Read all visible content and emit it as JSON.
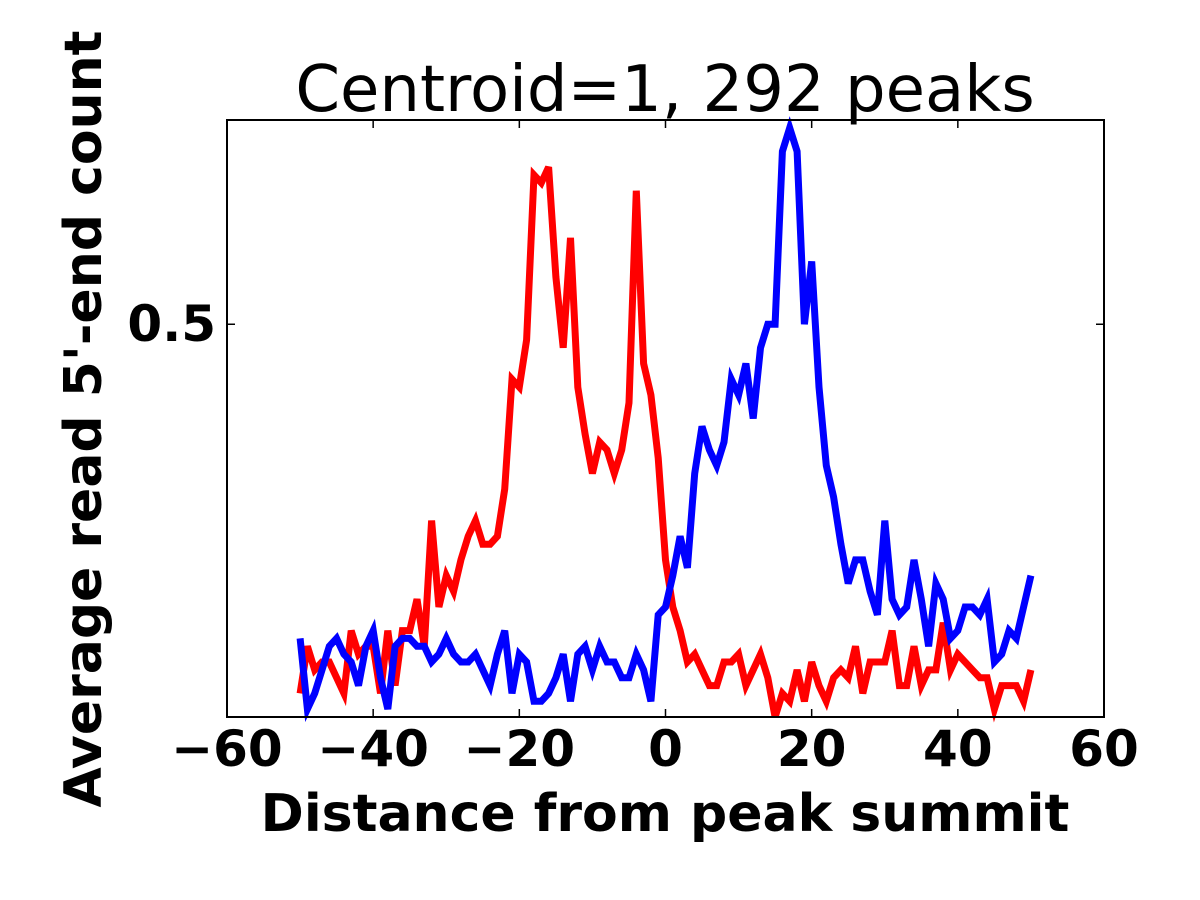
{
  "chart_data": {
    "type": "line",
    "title": "Centroid=1, 292 peaks",
    "xlabel": "Distance from peak summit",
    "ylabel": "Average read 5'-end count",
    "xlim": [
      -60,
      60
    ],
    "ylim": [
      0.0,
      0.76
    ],
    "x_ticks": [
      -60,
      -40,
      -20,
      0,
      20,
      40,
      60
    ],
    "x_tick_labels": [
      "−60",
      "−40",
      "−20",
      "0",
      "20",
      "40",
      "60"
    ],
    "y_ticks": [
      0.5
    ],
    "y_tick_labels": [
      "0.5"
    ],
    "grid": false,
    "legend": "none",
    "x": [
      -50,
      -49,
      -48,
      -47,
      -46,
      -45,
      -44,
      -43,
      -42,
      -41,
      -40,
      -39,
      -38,
      -37,
      -36,
      -35,
      -34,
      -33,
      -32,
      -31,
      -30,
      -29,
      -28,
      -27,
      -26,
      -25,
      -24,
      -23,
      -22,
      -21,
      -20,
      -19,
      -18,
      -17,
      -16,
      -15,
      -14,
      -13,
      -12,
      -11,
      -10,
      -9,
      -8,
      -7,
      -6,
      -5,
      -4,
      -3,
      -2,
      -1,
      0,
      1,
      2,
      3,
      4,
      5,
      6,
      7,
      8,
      9,
      10,
      11,
      12,
      13,
      14,
      15,
      16,
      17,
      18,
      19,
      20,
      21,
      22,
      23,
      24,
      25,
      26,
      27,
      28,
      29,
      30,
      31,
      32,
      33,
      34,
      35,
      36,
      37,
      38,
      39,
      40,
      41,
      42,
      43,
      44,
      45,
      46,
      47,
      48,
      49,
      50
    ],
    "series": [
      {
        "color": "#ff0000",
        "values": [
          0.03,
          0.09,
          0.06,
          0.07,
          0.07,
          0.05,
          0.03,
          0.11,
          0.08,
          0.09,
          0.09,
          0.03,
          0.11,
          0.04,
          0.11,
          0.11,
          0.15,
          0.09,
          0.25,
          0.14,
          0.18,
          0.16,
          0.2,
          0.23,
          0.25,
          0.22,
          0.22,
          0.23,
          0.29,
          0.43,
          0.42,
          0.48,
          0.69,
          0.68,
          0.7,
          0.56,
          0.47,
          0.61,
          0.42,
          0.36,
          0.31,
          0.35,
          0.34,
          0.31,
          0.34,
          0.4,
          0.67,
          0.45,
          0.41,
          0.33,
          0.2,
          0.14,
          0.11,
          0.07,
          0.08,
          0.06,
          0.04,
          0.04,
          0.07,
          0.07,
          0.08,
          0.04,
          0.06,
          0.08,
          0.05,
          0.0,
          0.03,
          0.02,
          0.06,
          0.02,
          0.07,
          0.04,
          0.02,
          0.05,
          0.06,
          0.05,
          0.09,
          0.03,
          0.07,
          0.07,
          0.07,
          0.11,
          0.04,
          0.04,
          0.09,
          0.04,
          0.06,
          0.06,
          0.12,
          0.06,
          0.08,
          0.07,
          0.06,
          0.05,
          0.05,
          0.01,
          0.04,
          0.04,
          0.04,
          0.02,
          0.06
        ]
      },
      {
        "color": "#0000ff",
        "values": [
          0.1,
          0.01,
          0.03,
          0.06,
          0.09,
          0.1,
          0.08,
          0.07,
          0.04,
          0.09,
          0.11,
          0.05,
          0.01,
          0.09,
          0.1,
          0.1,
          0.09,
          0.09,
          0.07,
          0.08,
          0.1,
          0.08,
          0.07,
          0.07,
          0.08,
          0.06,
          0.04,
          0.08,
          0.11,
          0.03,
          0.08,
          0.07,
          0.02,
          0.02,
          0.03,
          0.05,
          0.08,
          0.02,
          0.08,
          0.09,
          0.06,
          0.09,
          0.07,
          0.07,
          0.05,
          0.05,
          0.08,
          0.06,
          0.02,
          0.13,
          0.14,
          0.18,
          0.23,
          0.19,
          0.31,
          0.37,
          0.34,
          0.32,
          0.35,
          0.43,
          0.41,
          0.45,
          0.38,
          0.47,
          0.5,
          0.5,
          0.72,
          0.75,
          0.72,
          0.5,
          0.58,
          0.42,
          0.32,
          0.28,
          0.22,
          0.17,
          0.2,
          0.2,
          0.16,
          0.13,
          0.25,
          0.15,
          0.13,
          0.14,
          0.2,
          0.15,
          0.09,
          0.17,
          0.15,
          0.1,
          0.11,
          0.14,
          0.14,
          0.13,
          0.15,
          0.07,
          0.08,
          0.11,
          0.1,
          0.14,
          0.18
        ]
      }
    ]
  }
}
